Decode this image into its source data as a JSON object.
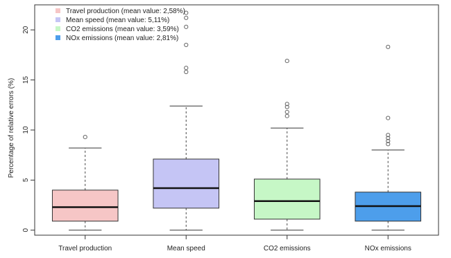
{
  "chart_data": {
    "type": "boxplot",
    "title": "",
    "ylabel": "Percentage of relative errors (%)",
    "xlabel": "",
    "ylim": [
      -0.5,
      22.5
    ],
    "yticks": [
      0,
      5,
      10,
      15,
      20
    ],
    "grid": false,
    "legend_position": "top-left",
    "categories": [
      "Travel production",
      "Mean speed",
      "CO2 emissions",
      "NOx emissions"
    ],
    "legend": [
      "Travel production (mean value: 2,58%)",
      "Mean speed (mean value: 5,11%)",
      "CO2 emissions (mean value: 3,59%)",
      "NOx emissions (mean value: 2,81%)"
    ],
    "series": [
      {
        "name": "Travel production",
        "color": "#f6c6c6",
        "whisker_low": 0,
        "q1": 0.9,
        "median": 2.3,
        "q3": 4.0,
        "whisker_high": 8.2,
        "outliers": [
          9.3
        ]
      },
      {
        "name": "Mean speed",
        "color": "#c5c5f5",
        "whisker_low": 0,
        "q1": 2.2,
        "median": 4.2,
        "q3": 7.1,
        "whisker_high": 12.4,
        "outliers": [
          15.8,
          16.2,
          18.5,
          20.3,
          21.2,
          21.7
        ]
      },
      {
        "name": "CO2 emissions",
        "color": "#c6f7c6",
        "whisker_low": 0,
        "q1": 1.1,
        "median": 2.9,
        "q3": 5.1,
        "whisker_high": 10.2,
        "outliers": [
          11.4,
          11.8,
          12.3,
          12.6,
          16.9
        ]
      },
      {
        "name": "NOx emissions",
        "color": "#4d9eeb",
        "whisker_low": 0,
        "q1": 0.9,
        "median": 2.4,
        "q3": 3.8,
        "whisker_high": 8.0,
        "outliers": [
          8.6,
          8.9,
          9.2,
          9.5,
          11.2,
          18.3
        ]
      }
    ]
  }
}
